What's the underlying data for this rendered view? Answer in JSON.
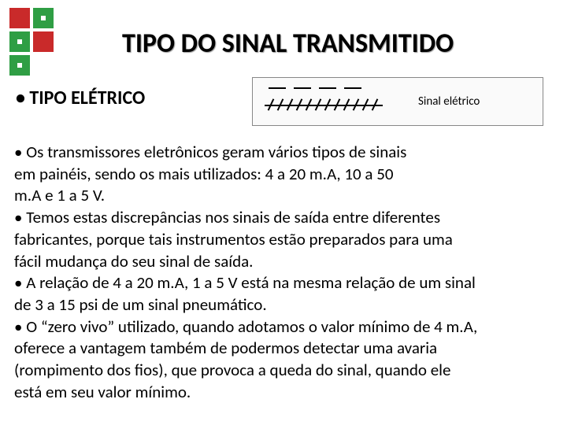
{
  "logo": {
    "colors": {
      "red": "#c92a2a",
      "green": "#2f9e44",
      "gap": "#ffffff"
    },
    "block_size": 26
  },
  "title": {
    "text": "TIPO DO SINAL TRANSMITIDO",
    "fontsize": 34
  },
  "subtitle": {
    "text": "• TIPO ELÉTRICO",
    "fontsize": 24
  },
  "symbol": {
    "label": "Sinal elétrico",
    "dash_count": 4,
    "slash_count": 12
  },
  "body": {
    "fontsize": 21,
    "lines": [
      "• Os transmissores eletrônicos geram vários tipos de sinais",
      "em painéis, sendo os mais utilizados: 4 a 20 m.A, 10 a 50",
      "m.A e 1 a 5 V.",
      "• Temos estas discrepâncias nos sinais de saída entre diferentes",
      "fabricantes, porque tais instrumentos estão preparados para uma",
      "fácil mudança do seu sinal de saída.",
      "• A relação de 4 a 20 m.A, 1 a 5 V está na mesma relação de um sinal",
      "de 3 a 15 psi de um sinal pneumático.",
      "• O “zero vivo” utilizado, quando adotamos o valor mínimo de 4 m.A,",
      "oferece a vantagem também de podermos detectar uma avaria",
      "(rompimento dos fios), que provoca a queda do sinal, quando ele",
      "está em seu valor mínimo."
    ]
  }
}
